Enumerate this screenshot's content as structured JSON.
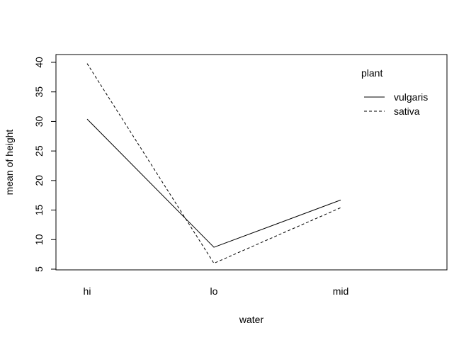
{
  "chart_data": {
    "type": "line",
    "title": "",
    "xlabel": "water",
    "ylabel": "mean of  height",
    "categories": [
      "hi",
      "lo",
      "mid"
    ],
    "ylim": [
      5,
      40
    ],
    "yticks": [
      5,
      10,
      15,
      20,
      25,
      30,
      35,
      40
    ],
    "grid": false,
    "legend": {
      "title": "plant",
      "placement": "top-right"
    },
    "series": [
      {
        "name": "vulgaris",
        "values": [
          30.4,
          8.7,
          16.7
        ],
        "line_style": "solid",
        "color": "#000000"
      },
      {
        "name": "sativa",
        "values": [
          39.8,
          6.0,
          15.4
        ],
        "line_style": "dashed",
        "color": "#000000"
      }
    ]
  }
}
